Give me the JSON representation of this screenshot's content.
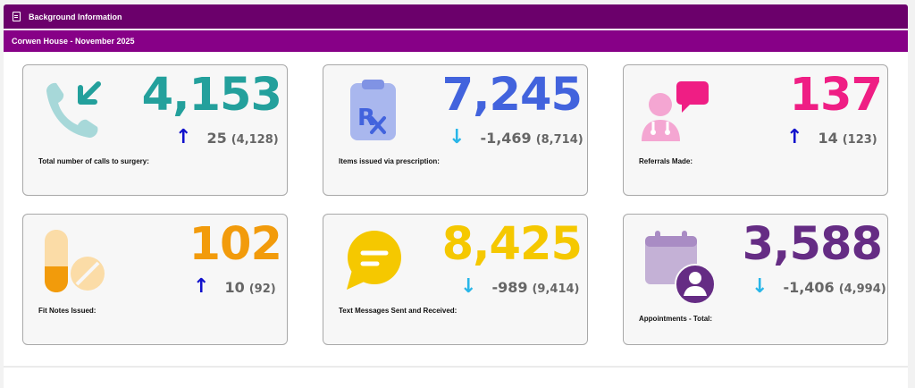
{
  "header": {
    "title": "Background Information",
    "subtitle": "Corwen House - November 2025"
  },
  "colors": {
    "header": "#6b006b",
    "subheader": "#870087",
    "up_arrow": "#1111cc",
    "down_arrow": "#29b6e8"
  },
  "cards": [
    {
      "value": "4,153",
      "delta": "25",
      "previous": "(4,128)",
      "direction": "up",
      "arrow": "↑",
      "label": "Total number of calls to surgery:",
      "color": "#23a09c",
      "icon": "phone-incoming-icon"
    },
    {
      "value": "7,245",
      "delta": "-1,469",
      "previous": "(8,714)",
      "direction": "down",
      "arrow": "↓",
      "label": "Items issued via prescription:",
      "color": "#4263dd",
      "icon": "prescription-icon"
    },
    {
      "value": "137",
      "delta": "14",
      "previous": "(123)",
      "direction": "up",
      "arrow": "↑",
      "label": "Referrals Made:",
      "color": "#ef1e84",
      "icon": "doctor-chat-icon"
    },
    {
      "value": "102",
      "delta": "10",
      "previous": "(92)",
      "direction": "up",
      "arrow": "↑",
      "label": "Fit Notes Issued:",
      "color": "#f29b0b",
      "icon": "pills-icon"
    },
    {
      "value": "8,425",
      "delta": "-989",
      "previous": "(9,414)",
      "direction": "down",
      "arrow": "↓",
      "label": "Text Messages Sent and Received:",
      "color": "#f5c800",
      "icon": "message-bubble-icon"
    },
    {
      "value": "3,588",
      "delta": "-1,406",
      "previous": "(4,994)",
      "direction": "down",
      "arrow": "↓",
      "label": "Appointments - Total:",
      "color": "#652c84",
      "icon": "calendar-user-icon"
    }
  ]
}
